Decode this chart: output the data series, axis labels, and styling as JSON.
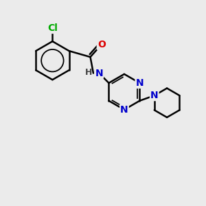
{
  "background_color": "#ebebeb",
  "bond_color": "#000000",
  "bond_width": 1.8,
  "atom_colors": {
    "Cl": "#00aa00",
    "O": "#dd0000",
    "N": "#0000cc",
    "C": "#000000",
    "H": "#444444"
  },
  "font_size": 10
}
